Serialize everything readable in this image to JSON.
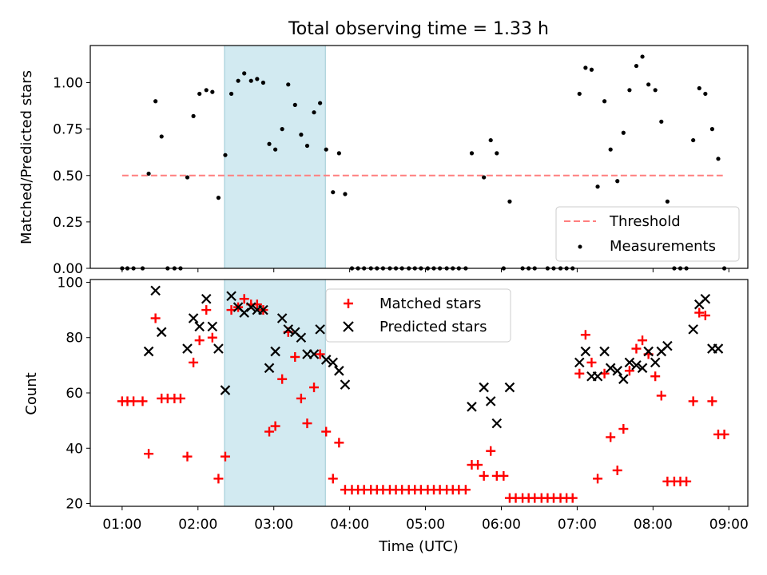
{
  "title": "Total observing time = 1.33 h",
  "colors": {
    "threshold": "#ff7f7f",
    "shade": "#add8e6",
    "matched": "#ff0000",
    "predicted": "#000000",
    "measurements": "#000000"
  },
  "chart_data": [
    {
      "type": "scatter",
      "ylabel": "Matched/Predicted stars",
      "ylim": [
        0,
        1.2
      ],
      "yticks": [
        0,
        0.25,
        0.5,
        0.75,
        1.0
      ],
      "ytick_labels": [
        "0.00",
        "0.25",
        "0.50",
        "0.75",
        "1.00"
      ],
      "xlim_hours": [
        0.58,
        9.25
      ],
      "shaded_span_hours": [
        2.35,
        3.68
      ],
      "legend": {
        "position": "lower right",
        "entries": [
          "Threshold",
          "Measurements"
        ]
      },
      "threshold": {
        "name": "Threshold",
        "value": 0.5,
        "x_hours": [
          1.0,
          8.92
        ]
      },
      "series": [
        {
          "name": "Measurements",
          "points": [
            [
              1.0,
              0.0
            ],
            [
              1.07,
              0.0
            ],
            [
              1.15,
              0.0
            ],
            [
              1.27,
              0.0
            ],
            [
              1.35,
              0.51
            ],
            [
              1.44,
              0.9
            ],
            [
              1.52,
              0.71
            ],
            [
              1.6,
              0.0
            ],
            [
              1.69,
              0.0
            ],
            [
              1.77,
              0.0
            ],
            [
              1.86,
              0.49
            ],
            [
              1.94,
              0.82
            ],
            [
              2.02,
              0.94
            ],
            [
              2.11,
              0.96
            ],
            [
              2.19,
              0.95
            ],
            [
              2.27,
              0.38
            ],
            [
              2.36,
              0.61
            ],
            [
              2.44,
              0.94
            ],
            [
              2.53,
              1.01
            ],
            [
              2.61,
              1.05
            ],
            [
              2.7,
              1.01
            ],
            [
              2.78,
              1.02
            ],
            [
              2.86,
              1.0
            ],
            [
              2.94,
              0.67
            ],
            [
              3.02,
              0.64
            ],
            [
              3.11,
              0.75
            ],
            [
              3.19,
              0.99
            ],
            [
              3.28,
              0.88
            ],
            [
              3.36,
              0.72
            ],
            [
              3.44,
              0.66
            ],
            [
              3.53,
              0.84
            ],
            [
              3.61,
              0.89
            ],
            [
              3.69,
              0.64
            ],
            [
              3.78,
              0.41
            ],
            [
              3.86,
              0.62
            ],
            [
              3.94,
              0.4
            ],
            [
              4.03,
              0.0
            ],
            [
              4.11,
              0.0
            ],
            [
              4.19,
              0.0
            ],
            [
              4.28,
              0.0
            ],
            [
              4.36,
              0.0
            ],
            [
              4.44,
              0.0
            ],
            [
              4.53,
              0.0
            ],
            [
              4.61,
              0.0
            ],
            [
              4.69,
              0.0
            ],
            [
              4.78,
              0.0
            ],
            [
              4.86,
              0.0
            ],
            [
              4.94,
              0.0
            ],
            [
              5.03,
              0.0
            ],
            [
              5.11,
              0.0
            ],
            [
              5.19,
              0.0
            ],
            [
              5.28,
              0.0
            ],
            [
              5.36,
              0.0
            ],
            [
              5.44,
              0.0
            ],
            [
              5.53,
              0.0
            ],
            [
              5.61,
              0.62
            ],
            [
              5.77,
              0.49
            ],
            [
              5.86,
              0.69
            ],
            [
              5.94,
              0.62
            ],
            [
              6.03,
              0.0
            ],
            [
              6.11,
              0.36
            ],
            [
              6.28,
              0.0
            ],
            [
              6.36,
              0.0
            ],
            [
              6.44,
              0.0
            ],
            [
              6.61,
              0.0
            ],
            [
              6.69,
              0.0
            ],
            [
              6.78,
              0.0
            ],
            [
              6.86,
              0.0
            ],
            [
              6.94,
              0.0
            ],
            [
              7.03,
              0.94
            ],
            [
              7.11,
              1.08
            ],
            [
              7.19,
              1.07
            ],
            [
              7.27,
              0.44
            ],
            [
              7.36,
              0.9
            ],
            [
              7.44,
              0.64
            ],
            [
              7.53,
              0.47
            ],
            [
              7.61,
              0.73
            ],
            [
              7.69,
              0.96
            ],
            [
              7.78,
              1.09
            ],
            [
              7.86,
              1.14
            ],
            [
              7.94,
              0.99
            ],
            [
              8.03,
              0.96
            ],
            [
              8.11,
              0.79
            ],
            [
              8.19,
              0.36
            ],
            [
              8.28,
              0.0
            ],
            [
              8.36,
              0.0
            ],
            [
              8.44,
              0.0
            ],
            [
              8.53,
              0.69
            ],
            [
              8.61,
              0.97
            ],
            [
              8.69,
              0.94
            ],
            [
              8.78,
              0.75
            ],
            [
              8.86,
              0.59
            ],
            [
              8.94,
              0.0
            ]
          ]
        }
      ]
    },
    {
      "type": "scatter",
      "xlabel": "Time (UTC)",
      "ylabel": "Count",
      "ylim": [
        19,
        101
      ],
      "yticks": [
        20,
        40,
        60,
        80,
        100
      ],
      "ytick_labels": [
        "20",
        "40",
        "60",
        "80",
        "100"
      ],
      "xlim_hours": [
        0.58,
        9.25
      ],
      "xticks_hours": [
        1,
        2,
        3,
        4,
        5,
        6,
        7,
        8,
        9
      ],
      "xtick_labels": [
        "01:00",
        "02:00",
        "03:00",
        "04:00",
        "05:00",
        "06:00",
        "07:00",
        "08:00",
        "09:00"
      ],
      "shaded_span_hours": [
        2.35,
        3.68
      ],
      "legend": {
        "position": "upper center",
        "entries": [
          "Matched stars",
          "Predicted stars"
        ]
      },
      "series": [
        {
          "name": "Matched stars",
          "marker": "+",
          "points": [
            [
              1.0,
              57
            ],
            [
              1.07,
              57
            ],
            [
              1.15,
              57
            ],
            [
              1.27,
              57
            ],
            [
              1.35,
              38
            ],
            [
              1.44,
              87
            ],
            [
              1.52,
              58
            ],
            [
              1.6,
              58
            ],
            [
              1.69,
              58
            ],
            [
              1.77,
              58
            ],
            [
              1.86,
              37
            ],
            [
              1.94,
              71
            ],
            [
              2.02,
              79
            ],
            [
              2.11,
              90
            ],
            [
              2.19,
              80
            ],
            [
              2.27,
              29
            ],
            [
              2.36,
              37
            ],
            [
              2.44,
              90
            ],
            [
              2.53,
              91
            ],
            [
              2.61,
              94
            ],
            [
              2.7,
              92
            ],
            [
              2.78,
              92
            ],
            [
              2.86,
              90
            ],
            [
              2.94,
              46
            ],
            [
              3.02,
              48
            ],
            [
              3.11,
              65
            ],
            [
              3.19,
              82
            ],
            [
              3.28,
              73
            ],
            [
              3.36,
              58
            ],
            [
              3.44,
              49
            ],
            [
              3.53,
              62
            ],
            [
              3.61,
              74
            ],
            [
              3.69,
              46
            ],
            [
              3.78,
              29
            ],
            [
              3.86,
              42
            ],
            [
              3.94,
              25
            ],
            [
              4.03,
              25
            ],
            [
              4.11,
              25
            ],
            [
              4.19,
              25
            ],
            [
              4.28,
              25
            ],
            [
              4.36,
              25
            ],
            [
              4.44,
              25
            ],
            [
              4.53,
              25
            ],
            [
              4.61,
              25
            ],
            [
              4.69,
              25
            ],
            [
              4.78,
              25
            ],
            [
              4.86,
              25
            ],
            [
              4.94,
              25
            ],
            [
              5.03,
              25
            ],
            [
              5.11,
              25
            ],
            [
              5.19,
              25
            ],
            [
              5.28,
              25
            ],
            [
              5.36,
              25
            ],
            [
              5.44,
              25
            ],
            [
              5.53,
              25
            ],
            [
              5.61,
              34
            ],
            [
              5.69,
              34
            ],
            [
              5.77,
              30
            ],
            [
              5.86,
              39
            ],
            [
              5.94,
              30
            ],
            [
              6.03,
              30
            ],
            [
              6.11,
              22
            ],
            [
              6.19,
              22
            ],
            [
              6.28,
              22
            ],
            [
              6.36,
              22
            ],
            [
              6.44,
              22
            ],
            [
              6.53,
              22
            ],
            [
              6.61,
              22
            ],
            [
              6.69,
              22
            ],
            [
              6.78,
              22
            ],
            [
              6.86,
              22
            ],
            [
              6.94,
              22
            ],
            [
              7.03,
              67
            ],
            [
              7.11,
              81
            ],
            [
              7.19,
              71
            ],
            [
              7.27,
              29
            ],
            [
              7.36,
              67
            ],
            [
              7.44,
              44
            ],
            [
              7.53,
              32
            ],
            [
              7.61,
              47
            ],
            [
              7.69,
              68
            ],
            [
              7.78,
              76
            ],
            [
              7.86,
              79
            ],
            [
              7.94,
              74
            ],
            [
              8.03,
              66
            ],
            [
              8.11,
              59
            ],
            [
              8.19,
              28
            ],
            [
              8.28,
              28
            ],
            [
              8.36,
              28
            ],
            [
              8.44,
              28
            ],
            [
              8.53,
              57
            ],
            [
              8.61,
              89
            ],
            [
              8.69,
              88
            ],
            [
              8.78,
              57
            ],
            [
              8.86,
              45
            ],
            [
              8.94,
              45
            ]
          ]
        },
        {
          "name": "Predicted stars",
          "marker": "x",
          "points": [
            [
              1.35,
              75
            ],
            [
              1.44,
              97
            ],
            [
              1.52,
              82
            ],
            [
              1.86,
              76
            ],
            [
              1.94,
              87
            ],
            [
              2.02,
              84
            ],
            [
              2.11,
              94
            ],
            [
              2.19,
              84
            ],
            [
              2.27,
              76
            ],
            [
              2.36,
              61
            ],
            [
              2.44,
              95
            ],
            [
              2.53,
              91
            ],
            [
              2.61,
              89
            ],
            [
              2.7,
              91
            ],
            [
              2.78,
              90
            ],
            [
              2.86,
              90
            ],
            [
              2.94,
              69
            ],
            [
              3.02,
              75
            ],
            [
              3.11,
              87
            ],
            [
              3.19,
              83
            ],
            [
              3.28,
              82
            ],
            [
              3.36,
              80
            ],
            [
              3.44,
              74
            ],
            [
              3.53,
              74
            ],
            [
              3.61,
              83
            ],
            [
              3.69,
              72
            ],
            [
              3.78,
              71
            ],
            [
              3.86,
              68
            ],
            [
              3.94,
              63
            ],
            [
              5.61,
              55
            ],
            [
              5.77,
              62
            ],
            [
              5.86,
              57
            ],
            [
              5.94,
              49
            ],
            [
              6.11,
              62
            ],
            [
              7.03,
              71
            ],
            [
              7.11,
              75
            ],
            [
              7.19,
              66
            ],
            [
              7.27,
              66
            ],
            [
              7.36,
              75
            ],
            [
              7.44,
              69
            ],
            [
              7.53,
              68
            ],
            [
              7.61,
              65
            ],
            [
              7.69,
              71
            ],
            [
              7.78,
              70
            ],
            [
              7.86,
              69
            ],
            [
              7.94,
              75
            ],
            [
              8.03,
              71
            ],
            [
              8.11,
              75
            ],
            [
              8.19,
              77
            ],
            [
              8.53,
              83
            ],
            [
              8.61,
              92
            ],
            [
              8.69,
              94
            ],
            [
              8.78,
              76
            ],
            [
              8.86,
              76
            ]
          ]
        }
      ]
    }
  ]
}
